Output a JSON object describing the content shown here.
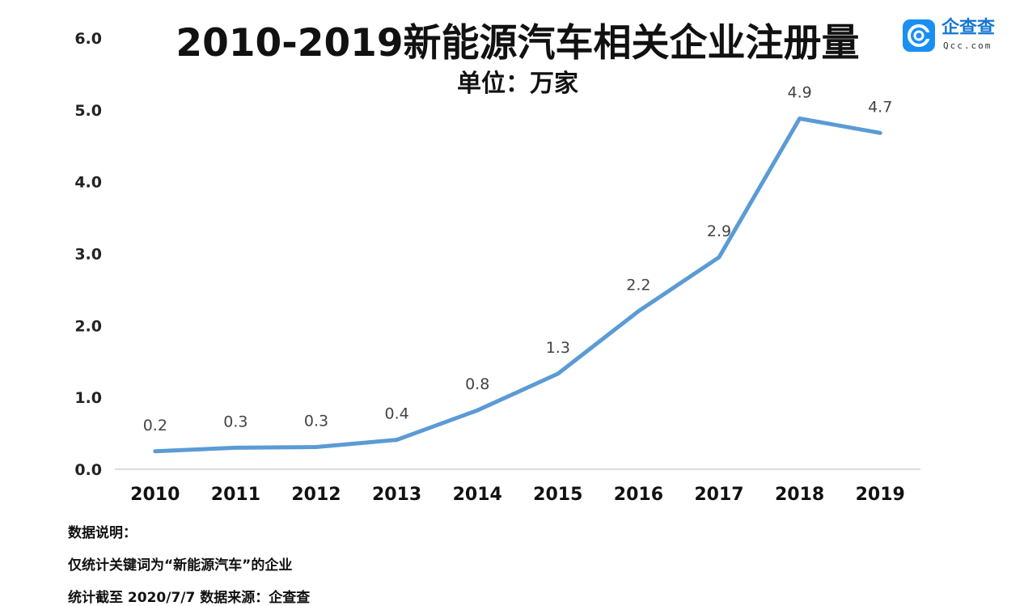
{
  "chart_data": {
    "type": "line",
    "title": "2010-2019新能源汽车相关企业注册量",
    "subtitle": "单位：万家",
    "xlabel": "",
    "ylabel": "",
    "categories": [
      "2010",
      "2011",
      "2012",
      "2013",
      "2014",
      "2015",
      "2016",
      "2017",
      "2018",
      "2019"
    ],
    "values": [
      0.25,
      0.3,
      0.31,
      0.41,
      0.82,
      1.33,
      2.2,
      2.95,
      4.88,
      4.68
    ],
    "value_labels": [
      "0.2",
      "0.3",
      "0.3",
      "0.4",
      "0.8",
      "1.3",
      "2.2",
      "2.9",
      "4.9",
      "4.7"
    ],
    "ylim": [
      0,
      6
    ],
    "yticks": [
      "0.0",
      "1.0",
      "2.0",
      "3.0",
      "4.0",
      "5.0",
      "6.0"
    ],
    "grid": false,
    "line_color": "#5b9bd5"
  },
  "logo": {
    "name": "企查查",
    "url": "Qcc.com",
    "color": "#1a8ff2"
  },
  "notes": {
    "heading": "数据说明：",
    "line1": "仅统计关键词为“新能源汽车”的企业",
    "line2": "统计截至 2020/7/7  数据来源：企查查"
  }
}
